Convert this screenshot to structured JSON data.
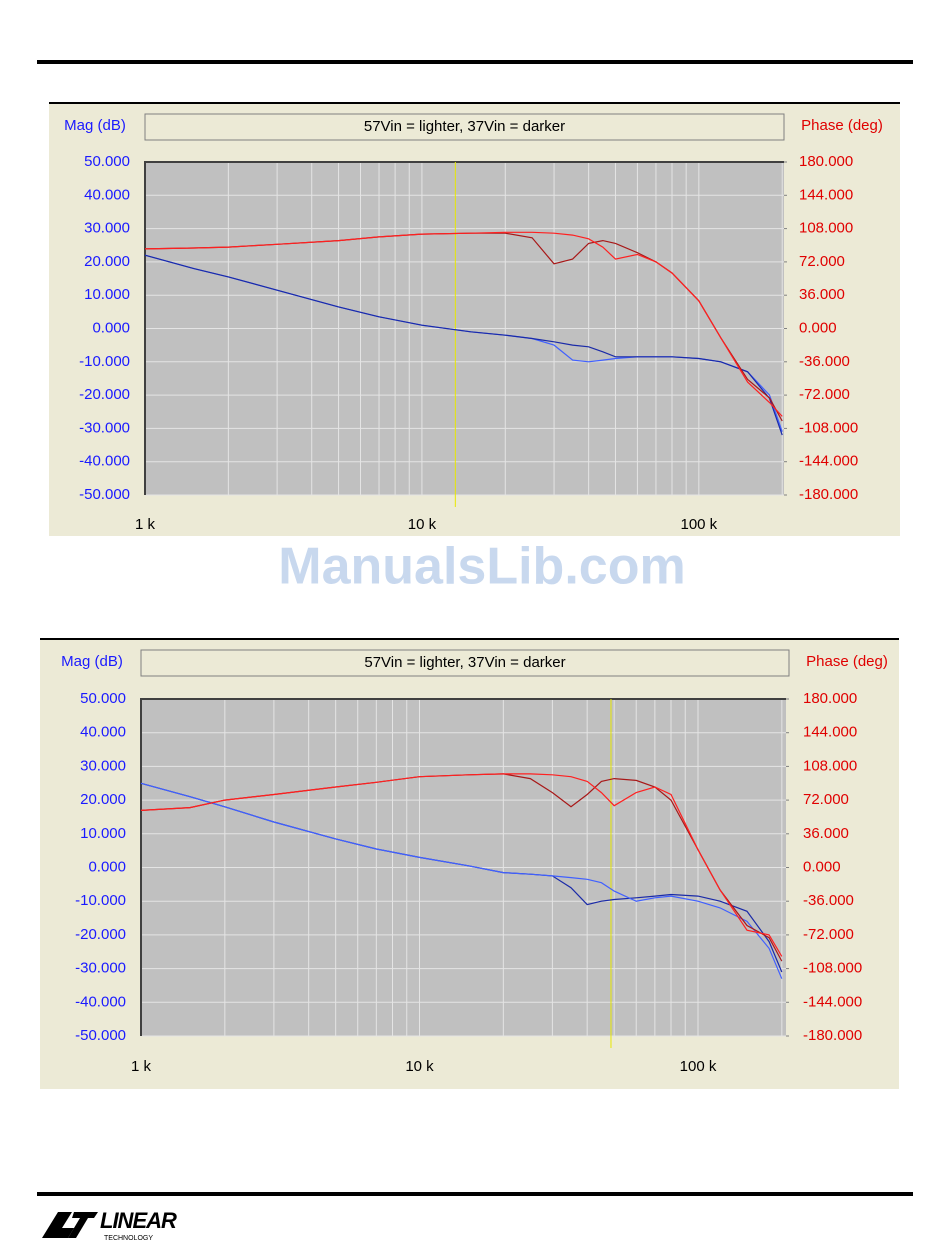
{
  "chart_data": [
    {
      "type": "line",
      "title": "57Vin = lighter, 37Vin = darker",
      "y_label": "Mag (dB)",
      "y2_label": "Phase (deg)",
      "xscale": "log",
      "xlim": [
        1000,
        203000
      ],
      "xticks": [
        {
          "value": 1000,
          "label": "1 k"
        },
        {
          "value": 10000,
          "label": "10 k"
        },
        {
          "value": 100000,
          "label": "100 k"
        }
      ],
      "xminor": [
        2000,
        3000,
        4000,
        5000,
        6000,
        7000,
        8000,
        9000,
        20000,
        30000,
        40000,
        50000,
        60000,
        70000,
        80000,
        90000,
        200000
      ],
      "ylim": [
        -50,
        50
      ],
      "yticks": [
        {
          "value": -50,
          "label": "-50.000"
        },
        {
          "value": -40,
          "label": "-40.000"
        },
        {
          "value": -30,
          "label": "-30.000"
        },
        {
          "value": -20,
          "label": "-20.000"
        },
        {
          "value": -10,
          "label": "-10.000"
        },
        {
          "value": 0,
          "label": "0.000"
        },
        {
          "value": 10,
          "label": "10.000"
        },
        {
          "value": 20,
          "label": "20.000"
        },
        {
          "value": 30,
          "label": "30.000"
        },
        {
          "value": 40,
          "label": "40.000"
        },
        {
          "value": 50,
          "label": "50.000"
        }
      ],
      "y2lim": [
        -180,
        180
      ],
      "y2ticks": [
        {
          "value": -180,
          "label": "-180.000"
        },
        {
          "value": -144,
          "label": "-144.000"
        },
        {
          "value": -108,
          "label": "-108.000"
        },
        {
          "value": -72,
          "label": "-72.000"
        },
        {
          "value": -36,
          "label": "-36.000"
        },
        {
          "value": 0,
          "label": "0.000"
        },
        {
          "value": 36,
          "label": "36.000"
        },
        {
          "value": 72,
          "label": "72.000"
        },
        {
          "value": 108,
          "label": "108.000"
        },
        {
          "value": 144,
          "label": "144.000"
        },
        {
          "value": 180,
          "label": "180.000"
        }
      ],
      "grid": true,
      "cursor_x": 13200,
      "cursor_color": "#e8e800",
      "x": [
        1000,
        1500,
        2000,
        3000,
        5000,
        7000,
        10000,
        15000,
        20000,
        25000,
        30000,
        35000,
        40000,
        45000,
        50000,
        60000,
        70000,
        80000,
        100000,
        120000,
        150000,
        180000,
        200000
      ],
      "series": [
        {
          "color": "#4060ff",
          "values": [
            22,
            18,
            15.5,
            11.5,
            6.5,
            3.5,
            1,
            -1,
            -2,
            -3,
            -5,
            -9.5,
            -10,
            -9.5,
            -9,
            -8.5,
            -8.5,
            -8.5,
            -9,
            -10,
            -13,
            -20,
            -31
          ]
        },
        {
          "color": "#1a2aa8",
          "values": [
            22,
            18,
            15.5,
            11.5,
            6.5,
            3.5,
            1,
            -1,
            -2,
            -3,
            -4,
            -5,
            -5.5,
            -7,
            -8.5,
            -8.5,
            -8.5,
            -8.5,
            -9,
            -10,
            -13,
            -21,
            -32
          ]
        },
        {
          "color": "#a81818",
          "axis": "y2",
          "values": [
            86,
            87,
            88,
            91,
            95,
            99,
            102,
            103,
            103,
            98,
            70,
            75,
            92,
            95,
            92,
            82,
            72,
            60,
            30,
            -10,
            -55,
            -75,
            -100
          ]
        },
        {
          "color": "#ff2020",
          "axis": "y2",
          "values": [
            86,
            87,
            88,
            91,
            95,
            99,
            102,
            103,
            104,
            104,
            103,
            101,
            97,
            88,
            75,
            80,
            72,
            60,
            30,
            -10,
            -58,
            -80,
            -95
          ]
        }
      ]
    },
    {
      "type": "line",
      "title": "57Vin = lighter, 37Vin = darker",
      "y_label": "Mag (dB)",
      "y2_label": "Phase (deg)",
      "xscale": "log",
      "xlim": [
        1000,
        207000
      ],
      "xticks": [
        {
          "value": 1000,
          "label": "1 k"
        },
        {
          "value": 10000,
          "label": "10 k"
        },
        {
          "value": 100000,
          "label": "100 k"
        }
      ],
      "xminor": [
        2000,
        3000,
        4000,
        5000,
        6000,
        7000,
        8000,
        9000,
        20000,
        30000,
        40000,
        50000,
        60000,
        70000,
        80000,
        90000,
        200000
      ],
      "ylim": [
        -50,
        50
      ],
      "yticks": [
        {
          "value": -50,
          "label": "-50.000"
        },
        {
          "value": -40,
          "label": "-40.000"
        },
        {
          "value": -30,
          "label": "-30.000"
        },
        {
          "value": -20,
          "label": "-20.000"
        },
        {
          "value": -10,
          "label": "-10.000"
        },
        {
          "value": 0,
          "label": "0.000"
        },
        {
          "value": 10,
          "label": "10.000"
        },
        {
          "value": 20,
          "label": "20.000"
        },
        {
          "value": 30,
          "label": "30.000"
        },
        {
          "value": 40,
          "label": "40.000"
        },
        {
          "value": 50,
          "label": "50.000"
        }
      ],
      "y2lim": [
        -180,
        180
      ],
      "y2ticks": [
        {
          "value": -180,
          "label": "-180.000"
        },
        {
          "value": -144,
          "label": "-144.000"
        },
        {
          "value": -108,
          "label": "-108.000"
        },
        {
          "value": -72,
          "label": "-72.000"
        },
        {
          "value": -36,
          "label": "-36.000"
        },
        {
          "value": 0,
          "label": "0.000"
        },
        {
          "value": 36,
          "label": "36.000"
        },
        {
          "value": 72,
          "label": "72.000"
        },
        {
          "value": 108,
          "label": "108.000"
        },
        {
          "value": 144,
          "label": "144.000"
        },
        {
          "value": 180,
          "label": "180.000"
        }
      ],
      "grid": true,
      "cursor_x": 48700,
      "cursor_color": "#e8e800",
      "x": [
        1000,
        1500,
        2000,
        3000,
        5000,
        7000,
        10000,
        15000,
        20000,
        25000,
        30000,
        35000,
        40000,
        45000,
        50000,
        60000,
        70000,
        80000,
        100000,
        120000,
        150000,
        180000,
        200000
      ],
      "series": [
        {
          "color": "#1a2aa8",
          "values": [
            25,
            21,
            18,
            13.5,
            8.5,
            5.5,
            3,
            0.5,
            -1.5,
            -2,
            -2.5,
            -6,
            -11,
            -10,
            -9.5,
            -9,
            -8.5,
            -8,
            -8.5,
            -10,
            -13,
            -22,
            -31
          ]
        },
        {
          "color": "#4060ff",
          "values": [
            25,
            21,
            18,
            13.5,
            8.5,
            5.5,
            3,
            0.5,
            -1.5,
            -2,
            -2.5,
            -3,
            -3.5,
            -4.5,
            -7,
            -10,
            -9,
            -8.5,
            -10,
            -12,
            -16,
            -24,
            -33
          ]
        },
        {
          "color": "#a81818",
          "axis": "y2",
          "values": [
            61,
            64,
            72,
            78,
            86,
            91,
            97,
            99,
            100,
            95,
            80,
            65,
            78,
            92,
            95,
            93,
            86,
            72,
            19,
            -24,
            -62,
            -75,
            -100
          ]
        },
        {
          "color": "#ff2020",
          "axis": "y2",
          "values": [
            61,
            64,
            72,
            78,
            86,
            91,
            97,
            99,
            100,
            100,
            99,
            97,
            92,
            80,
            66,
            80,
            86,
            78,
            19,
            -24,
            -67,
            -72,
            -95
          ]
        }
      ]
    }
  ],
  "watermark": "ManualsLib.com",
  "footer": {
    "logo": "LINEAR",
    "logo_sub": "TECHNOLOGY"
  }
}
